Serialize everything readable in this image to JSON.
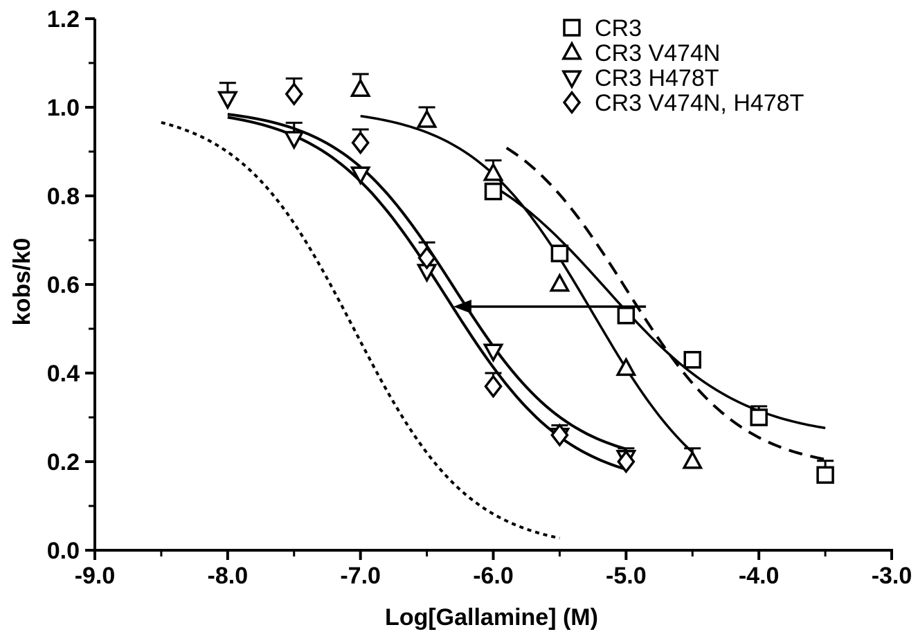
{
  "chart_data": {
    "type": "scatter",
    "xlabel": "Log[Gallamine] (M)",
    "ylabel": "kobs/k0",
    "xlim": [
      -9.0,
      -3.0
    ],
    "ylim": [
      0.0,
      1.2
    ],
    "x_ticks": [
      -9.0,
      -8.0,
      -7.0,
      -6.0,
      -5.0,
      -4.0,
      -3.0
    ],
    "x_tick_labels": [
      "-9.0",
      "-8.0",
      "-7.0",
      "-6.0",
      "-5.0",
      "-4.0",
      "-3.0"
    ],
    "y_ticks": [
      0.0,
      0.2,
      0.4,
      0.6,
      0.8,
      1.0,
      1.2
    ],
    "y_tick_labels": [
      "0.0",
      "0.2",
      "0.4",
      "0.6",
      "0.8",
      "1.0",
      "1.2"
    ],
    "legend_position": "top-right",
    "grid": false,
    "series": [
      {
        "name": "CR3",
        "marker": "square",
        "points": [
          {
            "x": -6.0,
            "y": 0.81,
            "err": 0.0
          },
          {
            "x": -5.5,
            "y": 0.67,
            "err": 0.0
          },
          {
            "x": -5.0,
            "y": 0.53,
            "err": 0.0
          },
          {
            "x": -4.5,
            "y": 0.43,
            "err": 0.0
          },
          {
            "x": -4.0,
            "y": 0.3,
            "err": 0.025
          },
          {
            "x": -3.5,
            "y": 0.17,
            "err": 0.032
          }
        ],
        "fit": {
          "top": 0.93,
          "bottom": 0.25,
          "logIC50": -5.15,
          "hill": 0.85,
          "x_range": [
            -6.0,
            -3.5
          ],
          "style": "solid"
        }
      },
      {
        "name": "CR3 V474N",
        "marker": "triangle-up",
        "points": [
          {
            "x": -7.0,
            "y": 1.04,
            "err": 0.035
          },
          {
            "x": -6.5,
            "y": 0.97,
            "err": 0.03
          },
          {
            "x": -6.0,
            "y": 0.85,
            "err": 0.03
          },
          {
            "x": -5.5,
            "y": 0.6,
            "err": 0.0
          },
          {
            "x": -5.0,
            "y": 0.41,
            "err": 0.0
          },
          {
            "x": -4.5,
            "y": 0.2,
            "err": 0.03
          }
        ],
        "fit": {
          "top": 1.0,
          "bottom": 0.07,
          "logIC50": -5.25,
          "hill": 0.95,
          "x_range": [
            -7.0,
            -4.5
          ],
          "style": "solid"
        }
      },
      {
        "name": "CR3 H478T",
        "marker": "triangle-down",
        "points": [
          {
            "x": -8.0,
            "y": 1.02,
            "err": 0.035
          },
          {
            "x": -7.5,
            "y": 0.93,
            "err": 0.035
          },
          {
            "x": -7.0,
            "y": 0.85,
            "err": 0.0
          },
          {
            "x": -6.5,
            "y": 0.63,
            "err": 0.0
          },
          {
            "x": -6.0,
            "y": 0.45,
            "err": 0.0
          },
          {
            "x": -5.5,
            "y": 0.26,
            "err": 0.022
          },
          {
            "x": -5.0,
            "y": 0.21,
            "err": 0.02
          }
        ],
        "fit": {
          "top": 1.0,
          "bottom": 0.19,
          "logIC50": -6.3,
          "hill": 1.0,
          "x_range": [
            -8.0,
            -5.0
          ],
          "style": "solid"
        }
      },
      {
        "name": "CR3 V474N, H478T",
        "marker": "diamond",
        "points": [
          {
            "x": -7.5,
            "y": 1.03,
            "err": 0.035
          },
          {
            "x": -7.0,
            "y": 0.92,
            "err": 0.03
          },
          {
            "x": -6.5,
            "y": 0.66,
            "err": 0.035
          },
          {
            "x": -6.0,
            "y": 0.37,
            "err": 0.03
          },
          {
            "x": -5.5,
            "y": 0.26,
            "err": 0.0
          },
          {
            "x": -5.0,
            "y": 0.2,
            "err": 0.0
          }
        ],
        "fit": {
          "top": 1.0,
          "bottom": 0.14,
          "logIC50": -6.35,
          "hill": 0.95,
          "x_range": [
            -8.0,
            -5.0
          ],
          "style": "solid"
        }
      }
    ],
    "reference_curves": [
      {
        "style": "dotted",
        "top": 1.0,
        "bottom": 0.0,
        "logIC50": -7.05,
        "hill": 1.0,
        "x_range": [
          -8.5,
          -5.5
        ]
      },
      {
        "style": "dashed",
        "top": 1.0,
        "bottom": 0.18,
        "logIC50": -5.0,
        "hill": 1.0,
        "x_range": [
          -5.9,
          -3.5
        ]
      }
    ],
    "annotations": [
      {
        "type": "arrow",
        "from": {
          "x": -4.85,
          "y": 0.55
        },
        "to": {
          "x": -6.3,
          "y": 0.55
        }
      }
    ]
  }
}
